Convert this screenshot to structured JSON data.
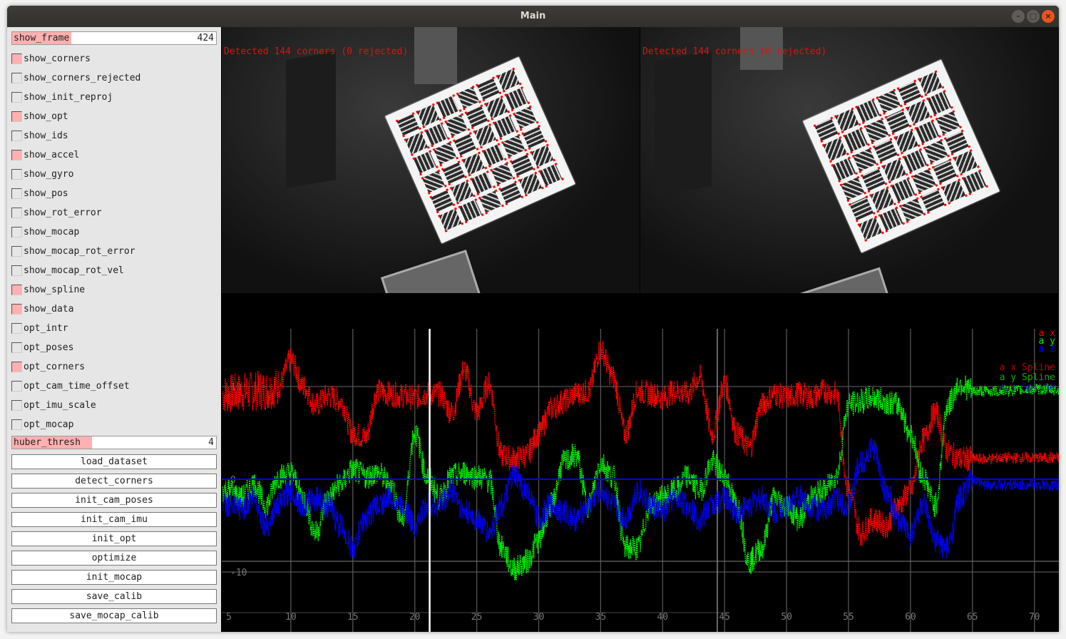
{
  "window": {
    "title": "Main"
  },
  "panel": {
    "show_frame": {
      "label": "show_frame",
      "value": "424",
      "fill": 0.29
    },
    "checkboxes": [
      {
        "label": "show_corners",
        "checked": true
      },
      {
        "label": "show_corners_rejected",
        "checked": false
      },
      {
        "label": "show_init_reproj",
        "checked": false
      },
      {
        "label": "show_opt",
        "checked": true
      },
      {
        "label": "show_ids",
        "checked": false
      },
      {
        "label": "show_accel",
        "checked": true
      },
      {
        "label": "show_gyro",
        "checked": false
      },
      {
        "label": "show_pos",
        "checked": false
      },
      {
        "label": "show_rot_error",
        "checked": false
      },
      {
        "label": "show_mocap",
        "checked": false
      },
      {
        "label": "show_mocap_rot_error",
        "checked": false
      },
      {
        "label": "show_mocap_rot_vel",
        "checked": false
      },
      {
        "label": "show_spline",
        "checked": true
      },
      {
        "label": "show_data",
        "checked": true
      },
      {
        "label": "opt_intr",
        "checked": false
      },
      {
        "label": "opt_poses",
        "checked": false
      },
      {
        "label": "opt_corners",
        "checked": true
      },
      {
        "label": "opt_cam_time_offset",
        "checked": false
      },
      {
        "label": "opt_imu_scale",
        "checked": false
      },
      {
        "label": "opt_mocap",
        "checked": false
      }
    ],
    "huber_thresh": {
      "label": "huber_thresh",
      "value": "4",
      "fill": 0.39
    },
    "buttons": [
      "load_dataset",
      "detect_corners",
      "init_cam_poses",
      "init_cam_imu",
      "init_opt",
      "optimize",
      "init_mocap",
      "save_calib",
      "save_mocap_calib"
    ]
  },
  "cameras": [
    {
      "text": "Detected 144 corners (0 rejected)"
    },
    {
      "text": "Detected 144 corners (0 rejected)"
    }
  ],
  "colors": {
    "ax": "#ff0000",
    "ay": "#00ee00",
    "az": "#0000ff",
    "accent": "#ffb0b0",
    "detect_text": "#e01010"
  },
  "chart_data": {
    "type": "line",
    "xlim": [
      4.5,
      72.5
    ],
    "ylim": [
      -16.5,
      20
    ],
    "x_ticks": [
      5,
      10,
      15,
      20,
      25,
      30,
      35,
      40,
      45,
      50,
      55,
      60,
      65,
      70
    ],
    "y_ticks": [
      10,
      0,
      -10
    ],
    "grid": true,
    "legend_position": "top-right",
    "current_time_marker": 21.2,
    "legend": [
      "a x",
      "a y",
      "a z",
      "a x Spline",
      "a y Spline",
      "a z Spline"
    ],
    "x": [
      5,
      6,
      7,
      8,
      9,
      10,
      11,
      12,
      13,
      14,
      15,
      16,
      17,
      18,
      19,
      20,
      21,
      22,
      23,
      24,
      25,
      26,
      27,
      28,
      29,
      30,
      31,
      32,
      33,
      34,
      35,
      36,
      37,
      38,
      39,
      40,
      41,
      42,
      43,
      44,
      45,
      46,
      47,
      48,
      49,
      50,
      51,
      52,
      53,
      54,
      55,
      56,
      57,
      58,
      59,
      60,
      61,
      62,
      63,
      64,
      65,
      66,
      67,
      68,
      69,
      70,
      71,
      72
    ],
    "series": [
      {
        "name": "a x",
        "values": [
          9.2,
          9.4,
          9.5,
          9.6,
          10,
          12.8,
          10,
          8,
          9,
          8.5,
          5,
          4.5,
          9.5,
          9.2,
          9,
          8.8,
          9.2,
          9.2,
          7.2,
          11.8,
          7.2,
          10.3,
          2.6,
          2.2,
          2.6,
          4.9,
          7.6,
          8.4,
          9.2,
          9.5,
          14,
          11,
          4.9,
          9.5,
          9.2,
          8.8,
          9.5,
          9.2,
          11,
          4.9,
          10.3,
          4.9,
          3.4,
          8,
          9.2,
          8.8,
          9.2,
          8.8,
          9.5,
          9.2,
          -1.2,
          -5.8,
          -4.3,
          -5,
          -2.8,
          -1.2,
          4.2,
          7.2,
          3,
          2.2,
          2.2,
          2.2,
          2.3,
          2.3,
          2.3,
          2.3,
          2.3,
          2.3
        ]
      },
      {
        "name": "a y",
        "values": [
          -1.2,
          -2,
          -0.5,
          -2.8,
          0.3,
          0.7,
          -2,
          -5.8,
          -2,
          -0.5,
          1,
          0.3,
          0.7,
          -0.5,
          -4.3,
          5,
          0.3,
          -2,
          0.3,
          0.7,
          0.3,
          -0.1,
          -7.4,
          -9.7,
          -8.9,
          -6.6,
          -2.8,
          1.8,
          2.6,
          -2.8,
          1.8,
          0.3,
          -7.4,
          -7.4,
          -2.8,
          -2,
          -1.2,
          0.3,
          -1.2,
          1.8,
          0.3,
          -2.8,
          -8.9,
          -7.4,
          -2,
          -2.8,
          -4.3,
          -2,
          -1.2,
          0.3,
          8,
          8.4,
          8.8,
          8.4,
          8,
          4.9,
          0.3,
          -2.8,
          8,
          10.3,
          9.5,
          9.5,
          9.5,
          9.6,
          9.6,
          9.7,
          9.7,
          9.6
        ]
      },
      {
        "name": "a z",
        "values": [
          -2.8,
          -3.2,
          -2,
          -5,
          -2.8,
          -1.2,
          -2.8,
          -2,
          -2.8,
          -5,
          -7.4,
          -4.3,
          -2.8,
          -2,
          -2.8,
          -5,
          -2.8,
          -2.8,
          -1.2,
          -3.5,
          -4.3,
          -5.8,
          -2.8,
          0.3,
          -1.2,
          -4.3,
          -2.8,
          -3.5,
          -4.3,
          -2.8,
          -1.2,
          -2.8,
          -4.3,
          -1.2,
          -2.8,
          -3.5,
          -2,
          -2.8,
          -4.3,
          -2.8,
          -2,
          -3.5,
          -2.8,
          -2,
          -3.5,
          -2.8,
          -2,
          -2.8,
          -3.5,
          -2,
          -2.8,
          1.8,
          3.4,
          -1.2,
          -4.3,
          -5.8,
          -2.8,
          -6.6,
          -7.4,
          -2,
          -0.1,
          -0.6,
          -0.6,
          -0.6,
          -0.6,
          -0.6,
          -0.7,
          -0.7
        ]
      }
    ]
  }
}
